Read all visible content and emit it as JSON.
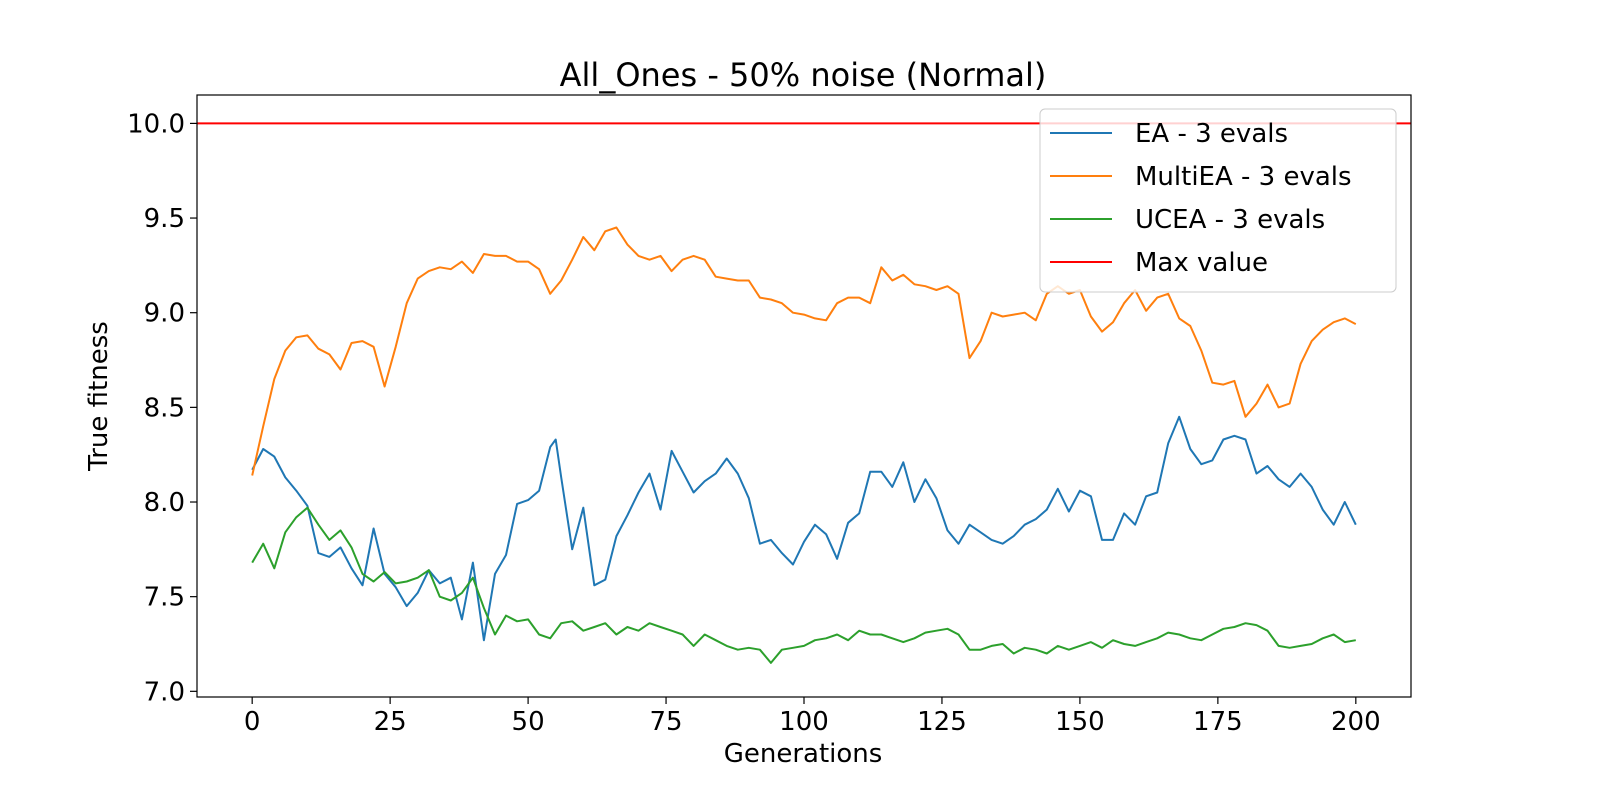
{
  "chart_data": {
    "type": "line",
    "title": "All_Ones - 50% noise (Normal)",
    "xlabel": "Generations",
    "ylabel": "True fitness",
    "xlim": [
      -10,
      210
    ],
    "ylim": [
      6.97,
      10.15
    ],
    "xticks": [
      0,
      25,
      50,
      75,
      100,
      125,
      150,
      175,
      200
    ],
    "xtick_labels": [
      "0",
      "25",
      "50",
      "75",
      "100",
      "125",
      "150",
      "175",
      "200"
    ],
    "yticks": [
      7.0,
      7.5,
      8.0,
      8.5,
      9.0,
      9.5,
      10.0
    ],
    "ytick_labels": [
      "7.0",
      "7.5",
      "8.0",
      "8.5",
      "9.0",
      "9.5",
      "10.0"
    ],
    "grid": false,
    "legend_position": "top-right",
    "series": [
      {
        "name": "EA - 3 evals",
        "color": "#1f77b4",
        "x": [
          0,
          2,
          4,
          6,
          8,
          10,
          12,
          14,
          16,
          18,
          20,
          22,
          24,
          26,
          28,
          30,
          32,
          34,
          36,
          38,
          40,
          42,
          44,
          46,
          48,
          50,
          52,
          54,
          55,
          56,
          58,
          60,
          62,
          64,
          66,
          68,
          70,
          72,
          74,
          76,
          78,
          80,
          82,
          84,
          86,
          88,
          90,
          92,
          94,
          96,
          98,
          100,
          102,
          104,
          106,
          108,
          110,
          112,
          114,
          116,
          118,
          120,
          122,
          124,
          126,
          128,
          130,
          132,
          134,
          136,
          138,
          140,
          142,
          144,
          146,
          148,
          150,
          152,
          154,
          156,
          158,
          160,
          162,
          164,
          166,
          168,
          170,
          172,
          174,
          176,
          178,
          180,
          182,
          184,
          186,
          188,
          190,
          192,
          194,
          196,
          198,
          200
        ],
        "values": [
          8.17,
          8.28,
          8.24,
          8.13,
          8.06,
          7.98,
          7.73,
          7.71,
          7.76,
          7.65,
          7.56,
          7.86,
          7.62,
          7.55,
          7.45,
          7.52,
          7.64,
          7.57,
          7.6,
          7.38,
          7.68,
          7.27,
          7.62,
          7.72,
          7.99,
          8.01,
          8.06,
          8.29,
          8.33,
          8.13,
          7.75,
          7.97,
          7.56,
          7.59,
          7.82,
          7.93,
          8.05,
          8.15,
          7.96,
          8.27,
          8.16,
          8.05,
          8.11,
          8.15,
          8.23,
          8.15,
          8.02,
          7.78,
          7.8,
          7.73,
          7.67,
          7.79,
          7.88,
          7.83,
          7.7,
          7.89,
          7.94,
          8.16,
          8.16,
          8.08,
          8.21,
          8.0,
          8.12,
          8.02,
          7.85,
          7.78,
          7.88,
          7.84,
          7.8,
          7.78,
          7.82,
          7.88,
          7.91,
          7.96,
          8.07,
          7.95,
          8.06,
          8.03,
          7.8,
          7.8,
          7.94,
          7.88,
          8.03,
          8.05,
          8.31,
          8.45,
          8.28,
          8.2,
          8.22,
          8.33,
          8.35,
          8.33,
          8.15,
          8.19,
          8.12,
          8.08,
          8.15,
          8.08,
          7.96,
          7.88,
          8.0,
          7.88
        ]
      },
      {
        "name": "MultiEA - 3 evals",
        "color": "#ff7f0e",
        "x": [
          0,
          2,
          4,
          6,
          8,
          10,
          12,
          14,
          16,
          18,
          20,
          22,
          24,
          26,
          28,
          30,
          32,
          34,
          36,
          38,
          40,
          42,
          44,
          46,
          48,
          50,
          52,
          54,
          56,
          58,
          60,
          62,
          64,
          66,
          68,
          70,
          72,
          74,
          76,
          78,
          80,
          82,
          84,
          86,
          88,
          90,
          92,
          94,
          96,
          98,
          100,
          102,
          104,
          106,
          108,
          110,
          112,
          114,
          116,
          118,
          120,
          122,
          124,
          126,
          128,
          130,
          132,
          134,
          136,
          138,
          140,
          142,
          144,
          146,
          148,
          150,
          152,
          154,
          156,
          158,
          160,
          162,
          164,
          166,
          168,
          170,
          172,
          174,
          176,
          178,
          180,
          182,
          184,
          186,
          188,
          190,
          192,
          194,
          196,
          198,
          200
        ],
        "values": [
          8.14,
          8.4,
          8.65,
          8.8,
          8.87,
          8.88,
          8.81,
          8.78,
          8.7,
          8.84,
          8.85,
          8.82,
          8.61,
          8.82,
          9.05,
          9.18,
          9.22,
          9.24,
          9.23,
          9.27,
          9.21,
          9.31,
          9.3,
          9.3,
          9.27,
          9.27,
          9.23,
          9.1,
          9.17,
          9.28,
          9.4,
          9.33,
          9.43,
          9.45,
          9.36,
          9.3,
          9.28,
          9.3,
          9.22,
          9.28,
          9.3,
          9.28,
          9.19,
          9.18,
          9.17,
          9.17,
          9.08,
          9.07,
          9.05,
          9.0,
          8.99,
          8.97,
          8.96,
          9.05,
          9.08,
          9.08,
          9.05,
          9.24,
          9.17,
          9.2,
          9.15,
          9.14,
          9.12,
          9.14,
          9.1,
          8.76,
          8.85,
          9.0,
          8.98,
          8.99,
          9.0,
          8.96,
          9.1,
          9.14,
          9.1,
          9.12,
          8.98,
          8.9,
          8.95,
          9.05,
          9.12,
          9.01,
          9.08,
          9.1,
          8.97,
          8.93,
          8.8,
          8.63,
          8.62,
          8.64,
          8.45,
          8.52,
          8.62,
          8.5,
          8.52,
          8.73,
          8.85,
          8.91,
          8.95,
          8.97,
          8.94
        ]
      },
      {
        "name": "UCEA - 3 evals",
        "color": "#2ca02c",
        "x": [
          0,
          2,
          4,
          6,
          8,
          10,
          12,
          14,
          16,
          18,
          20,
          22,
          24,
          26,
          28,
          30,
          32,
          34,
          36,
          38,
          40,
          42,
          44,
          46,
          48,
          50,
          52,
          54,
          56,
          58,
          60,
          62,
          64,
          66,
          68,
          70,
          72,
          74,
          76,
          78,
          80,
          82,
          84,
          86,
          88,
          90,
          92,
          94,
          96,
          98,
          100,
          102,
          104,
          106,
          108,
          110,
          112,
          114,
          116,
          118,
          120,
          122,
          124,
          126,
          128,
          130,
          132,
          134,
          136,
          138,
          140,
          142,
          144,
          146,
          148,
          150,
          152,
          154,
          156,
          158,
          160,
          162,
          164,
          166,
          168,
          170,
          172,
          174,
          176,
          178,
          180,
          182,
          184,
          186,
          188,
          190,
          192,
          194,
          196,
          198,
          200
        ],
        "values": [
          7.68,
          7.78,
          7.65,
          7.84,
          7.92,
          7.97,
          7.88,
          7.8,
          7.85,
          7.76,
          7.62,
          7.58,
          7.63,
          7.57,
          7.58,
          7.6,
          7.64,
          7.5,
          7.48,
          7.52,
          7.6,
          7.44,
          7.3,
          7.4,
          7.37,
          7.38,
          7.3,
          7.28,
          7.36,
          7.37,
          7.32,
          7.34,
          7.36,
          7.3,
          7.34,
          7.32,
          7.36,
          7.34,
          7.32,
          7.3,
          7.24,
          7.3,
          7.27,
          7.24,
          7.22,
          7.23,
          7.22,
          7.15,
          7.22,
          7.23,
          7.24,
          7.27,
          7.28,
          7.3,
          7.27,
          7.32,
          7.3,
          7.3,
          7.28,
          7.26,
          7.28,
          7.31,
          7.32,
          7.33,
          7.3,
          7.22,
          7.22,
          7.24,
          7.25,
          7.2,
          7.23,
          7.22,
          7.2,
          7.24,
          7.22,
          7.24,
          7.26,
          7.23,
          7.27,
          7.25,
          7.24,
          7.26,
          7.28,
          7.31,
          7.3,
          7.28,
          7.27,
          7.3,
          7.33,
          7.34,
          7.36,
          7.35,
          7.32,
          7.24,
          7.23,
          7.24,
          7.25,
          7.28,
          7.3,
          7.26,
          7.27
        ]
      },
      {
        "name": "Max value",
        "color": "#ff0000",
        "x": [
          -10,
          210
        ],
        "values": [
          10.0,
          10.0
        ]
      }
    ]
  }
}
